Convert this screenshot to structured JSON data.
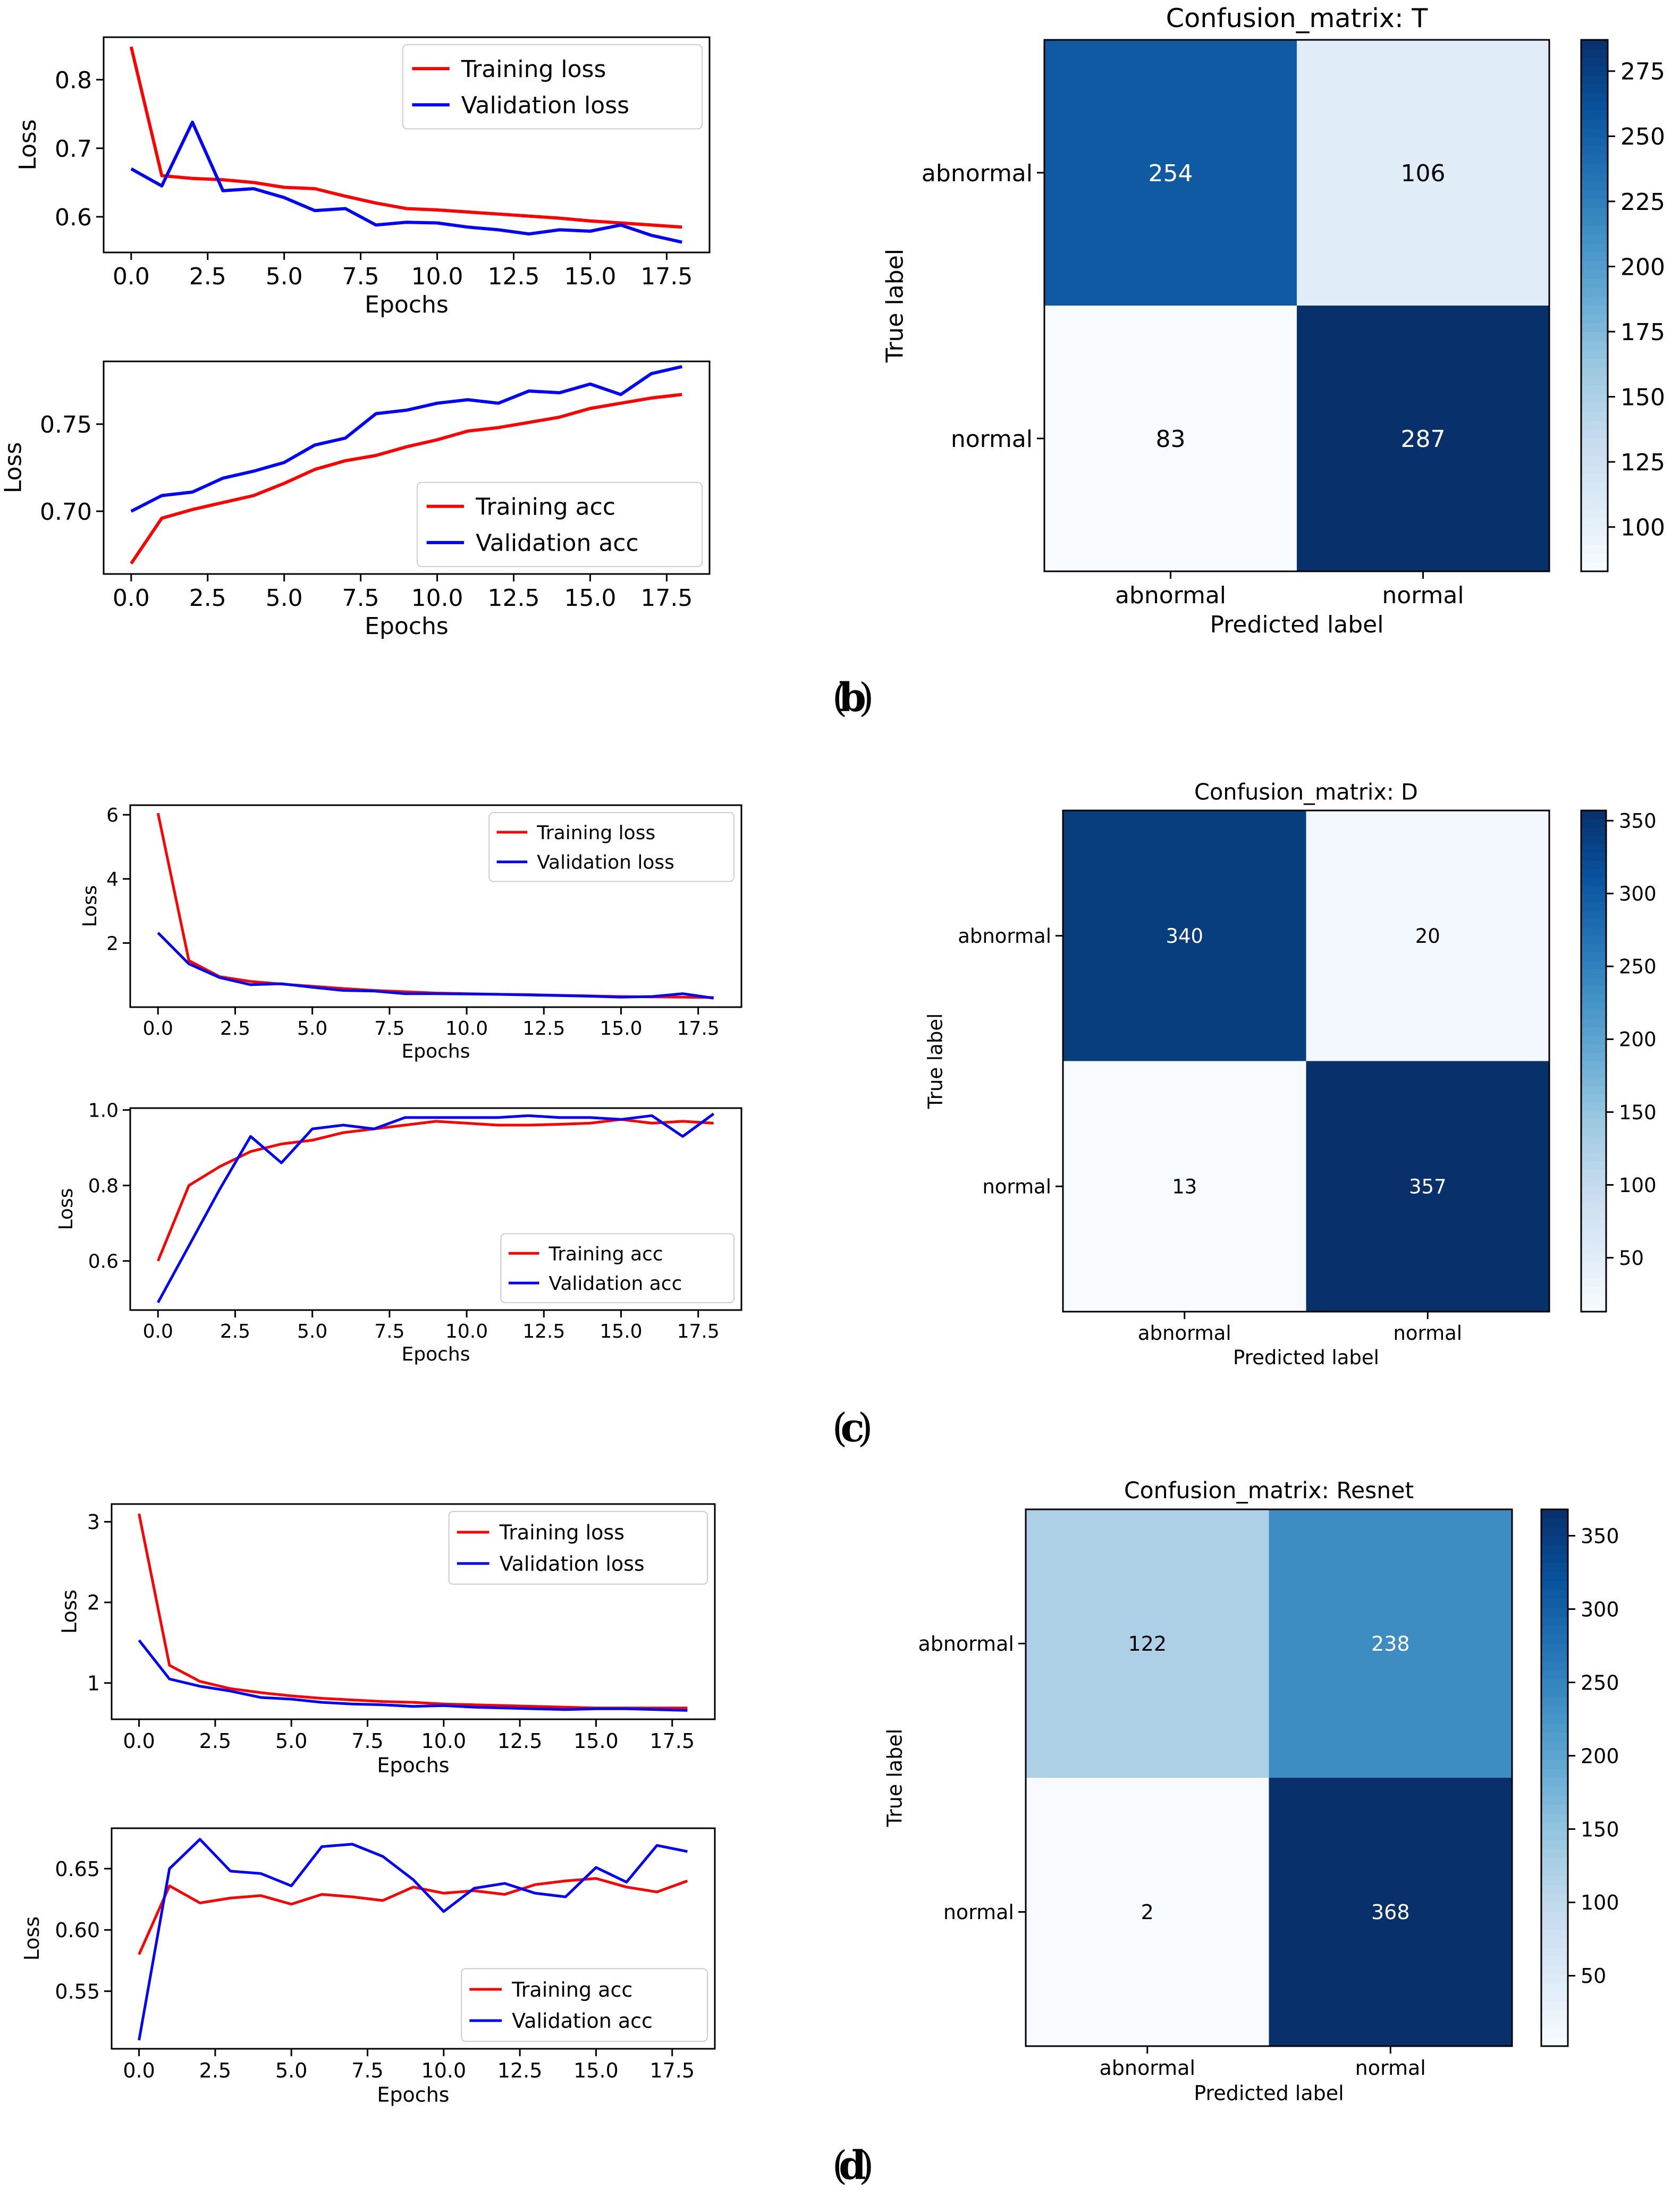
{
  "chart_data": [
    {
      "id": "b_loss",
      "type": "line",
      "x": [
        0,
        1,
        2,
        3,
        4,
        5,
        6,
        7,
        8,
        9,
        10,
        11,
        12,
        13,
        14,
        15,
        16,
        17,
        18
      ],
      "series": [
        {
          "name": "Training loss",
          "color": "#ff0000",
          "values": [
            0.848,
            0.66,
            0.656,
            0.654,
            0.65,
            0.643,
            0.641,
            0.63,
            0.62,
            0.612,
            0.61,
            0.607,
            0.604,
            0.601,
            0.598,
            0.594,
            0.591,
            0.588,
            0.585
          ]
        },
        {
          "name": "Validation loss",
          "color": "#0000ff",
          "values": [
            0.67,
            0.645,
            0.738,
            0.638,
            0.641,
            0.628,
            0.609,
            0.612,
            0.588,
            0.592,
            0.591,
            0.585,
            0.581,
            0.575,
            0.581,
            0.579,
            0.588,
            0.573,
            0.563
          ]
        }
      ],
      "title": "",
      "xlabel": "Epochs",
      "ylabel": "Loss",
      "xlim": [
        -0.9,
        18.9
      ],
      "ylim": [
        0.548,
        0.862
      ],
      "xticks": [
        0,
        2.5,
        5,
        7.5,
        10,
        12.5,
        15,
        17.5
      ],
      "xtick_labels": [
        "0.0",
        "2.5",
        "5.0",
        "7.5",
        "10.0",
        "12.5",
        "15.0",
        "17.5"
      ],
      "yticks": [
        0.6,
        0.7,
        0.8
      ],
      "ytick_labels": [
        "0.6",
        "0.7",
        "0.8"
      ],
      "legend": "top-right"
    },
    {
      "id": "b_acc",
      "type": "line",
      "x": [
        0,
        1,
        2,
        3,
        4,
        5,
        6,
        7,
        8,
        9,
        10,
        11,
        12,
        13,
        14,
        15,
        16,
        17,
        18
      ],
      "series": [
        {
          "name": "Training acc",
          "color": "#ff0000",
          "values": [
            0.67,
            0.696,
            0.701,
            0.705,
            0.709,
            0.716,
            0.724,
            0.729,
            0.732,
            0.737,
            0.741,
            0.746,
            0.748,
            0.751,
            0.754,
            0.759,
            0.762,
            0.765,
            0.767
          ]
        },
        {
          "name": "Validation acc",
          "color": "#0000ff",
          "values": [
            0.7,
            0.709,
            0.711,
            0.719,
            0.723,
            0.728,
            0.738,
            0.742,
            0.756,
            0.758,
            0.762,
            0.764,
            0.762,
            0.769,
            0.768,
            0.773,
            0.767,
            0.779,
            0.783
          ]
        }
      ],
      "title": "",
      "xlabel": "Epochs",
      "ylabel": "Loss",
      "xlim": [
        -0.9,
        18.9
      ],
      "ylim": [
        0.664,
        0.786
      ],
      "xticks": [
        0,
        2.5,
        5,
        7.5,
        10,
        12.5,
        15,
        17.5
      ],
      "xtick_labels": [
        "0.0",
        "2.5",
        "5.0",
        "7.5",
        "10.0",
        "12.5",
        "15.0",
        "17.5"
      ],
      "yticks": [
        0.7,
        0.75
      ],
      "ytick_labels": [
        "0.70",
        "0.75"
      ],
      "legend": "bottom-right"
    },
    {
      "id": "b_cm",
      "type": "heatmap",
      "title": "Confusion_matrix: T",
      "row_labels": [
        "abnormal",
        "normal"
      ],
      "col_labels": [
        "abnormal",
        "normal"
      ],
      "values": [
        [
          254,
          106
        ],
        [
          83,
          287
        ]
      ],
      "xlabel": "Predicted label",
      "ylabel": "True label",
      "vmin": 83,
      "vmax": 287,
      "colorbar_ticks": [
        100,
        125,
        150,
        175,
        200,
        225,
        250,
        275
      ],
      "colorbar_tick_labels": [
        "100",
        "125",
        "150",
        "175",
        "200",
        "225",
        "250",
        "275"
      ]
    },
    {
      "id": "c_loss",
      "type": "line",
      "x": [
        0,
        1,
        2,
        3,
        4,
        5,
        6,
        7,
        8,
        9,
        10,
        11,
        12,
        13,
        14,
        15,
        16,
        17,
        18
      ],
      "series": [
        {
          "name": "Training loss",
          "color": "#ff0000",
          "values": [
            6.05,
            1.45,
            0.95,
            0.8,
            0.72,
            0.65,
            0.58,
            0.52,
            0.48,
            0.44,
            0.42,
            0.4,
            0.39,
            0.37,
            0.35,
            0.33,
            0.32,
            0.31,
            0.3
          ]
        },
        {
          "name": "Validation loss",
          "color": "#0000ff",
          "values": [
            2.32,
            1.35,
            0.92,
            0.7,
            0.73,
            0.62,
            0.52,
            0.5,
            0.42,
            0.42,
            0.41,
            0.4,
            0.38,
            0.36,
            0.34,
            0.31,
            0.33,
            0.42,
            0.28
          ]
        }
      ],
      "title": "",
      "xlabel": "Epochs",
      "ylabel": "Loss",
      "xlim": [
        -0.9,
        18.9
      ],
      "ylim": [
        0.0,
        6.3
      ],
      "xticks": [
        0,
        2.5,
        5,
        7.5,
        10,
        12.5,
        15,
        17.5
      ],
      "xtick_labels": [
        "0.0",
        "2.5",
        "5.0",
        "7.5",
        "10.0",
        "12.5",
        "15.0",
        "17.5"
      ],
      "yticks": [
        2,
        4,
        6
      ],
      "ytick_labels": [
        "2",
        "4",
        "6"
      ],
      "legend": "top-right"
    },
    {
      "id": "c_acc",
      "type": "line",
      "x": [
        0,
        1,
        2,
        3,
        4,
        5,
        6,
        7,
        8,
        9,
        10,
        11,
        12,
        13,
        14,
        15,
        16,
        17,
        18
      ],
      "series": [
        {
          "name": "Training acc",
          "color": "#ff0000",
          "values": [
            0.6,
            0.8,
            0.85,
            0.89,
            0.91,
            0.92,
            0.94,
            0.95,
            0.96,
            0.97,
            0.965,
            0.96,
            0.96,
            0.962,
            0.965,
            0.975,
            0.965,
            0.97,
            0.965
          ]
        },
        {
          "name": "Validation acc",
          "color": "#0000ff",
          "values": [
            0.49,
            0.64,
            0.79,
            0.93,
            0.86,
            0.95,
            0.96,
            0.95,
            0.98,
            0.98,
            0.98,
            0.98,
            0.985,
            0.98,
            0.98,
            0.975,
            0.985,
            0.93,
            0.99
          ]
        }
      ],
      "title": "",
      "xlabel": "Epochs",
      "ylabel": "Loss",
      "xlim": [
        -0.9,
        18.9
      ],
      "ylim": [
        0.47,
        1.005
      ],
      "xticks": [
        0,
        2.5,
        5,
        7.5,
        10,
        12.5,
        15,
        17.5
      ],
      "xtick_labels": [
        "0.0",
        "2.5",
        "5.0",
        "7.5",
        "10.0",
        "12.5",
        "15.0",
        "17.5"
      ],
      "yticks": [
        0.6,
        0.8,
        1.0
      ],
      "ytick_labels": [
        "0.6",
        "0.8",
        "1.0"
      ],
      "legend": "bottom-right"
    },
    {
      "id": "c_cm",
      "type": "heatmap",
      "title": "Confusion_matrix: D",
      "row_labels": [
        "abnormal",
        "normal"
      ],
      "col_labels": [
        "abnormal",
        "normal"
      ],
      "values": [
        [
          340,
          20
        ],
        [
          13,
          357
        ]
      ],
      "xlabel": "Predicted label",
      "ylabel": "True label",
      "vmin": 13,
      "vmax": 357,
      "colorbar_ticks": [
        50,
        100,
        150,
        200,
        250,
        300,
        350
      ],
      "colorbar_tick_labels": [
        "50",
        "100",
        "150",
        "200",
        "250",
        "300",
        "350"
      ]
    },
    {
      "id": "d_loss",
      "type": "line",
      "x": [
        0,
        1,
        2,
        3,
        4,
        5,
        6,
        7,
        8,
        9,
        10,
        11,
        12,
        13,
        14,
        15,
        16,
        17,
        18
      ],
      "series": [
        {
          "name": "Training loss",
          "color": "#ff0000",
          "values": [
            3.1,
            1.22,
            1.02,
            0.93,
            0.88,
            0.84,
            0.81,
            0.79,
            0.77,
            0.76,
            0.74,
            0.73,
            0.72,
            0.71,
            0.7,
            0.69,
            0.69,
            0.69,
            0.69
          ]
        },
        {
          "name": "Validation loss",
          "color": "#0000ff",
          "values": [
            1.53,
            1.05,
            0.96,
            0.9,
            0.82,
            0.8,
            0.76,
            0.74,
            0.73,
            0.71,
            0.72,
            0.7,
            0.69,
            0.68,
            0.67,
            0.68,
            0.68,
            0.67,
            0.66
          ]
        }
      ],
      "title": "",
      "xlabel": "Epochs",
      "ylabel": "Loss",
      "xlim": [
        -0.9,
        18.9
      ],
      "ylim": [
        0.55,
        3.22
      ],
      "xticks": [
        0,
        2.5,
        5,
        7.5,
        10,
        12.5,
        15,
        17.5
      ],
      "xtick_labels": [
        "0.0",
        "2.5",
        "5.0",
        "7.5",
        "10.0",
        "12.5",
        "15.0",
        "17.5"
      ],
      "yticks": [
        1,
        2,
        3
      ],
      "ytick_labels": [
        "1",
        "2",
        "3"
      ],
      "legend": "top-right"
    },
    {
      "id": "d_acc",
      "type": "line",
      "x": [
        0,
        1,
        2,
        3,
        4,
        5,
        6,
        7,
        8,
        9,
        10,
        11,
        12,
        13,
        14,
        15,
        16,
        17,
        18
      ],
      "series": [
        {
          "name": "Training acc",
          "color": "#ff0000",
          "values": [
            0.58,
            0.636,
            0.622,
            0.626,
            0.628,
            0.621,
            0.629,
            0.627,
            0.624,
            0.635,
            0.63,
            0.632,
            0.629,
            0.637,
            0.64,
            0.642,
            0.635,
            0.631,
            0.64
          ]
        },
        {
          "name": "Validation acc",
          "color": "#0000ff",
          "values": [
            0.51,
            0.65,
            0.674,
            0.648,
            0.646,
            0.636,
            0.668,
            0.67,
            0.66,
            0.641,
            0.615,
            0.634,
            0.638,
            0.63,
            0.627,
            0.651,
            0.639,
            0.669,
            0.664
          ]
        }
      ],
      "title": "",
      "xlabel": "Epochs",
      "ylabel": "Loss",
      "xlim": [
        -0.9,
        18.9
      ],
      "ylim": [
        0.503,
        0.683
      ],
      "xticks": [
        0,
        2.5,
        5,
        7.5,
        10,
        12.5,
        15,
        17.5
      ],
      "xtick_labels": [
        "0.0",
        "2.5",
        "5.0",
        "7.5",
        "10.0",
        "12.5",
        "15.0",
        "17.5"
      ],
      "yticks": [
        0.55,
        0.6,
        0.65
      ],
      "ytick_labels": [
        "0.55",
        "0.60",
        "0.65"
      ],
      "legend": "bottom-right"
    },
    {
      "id": "d_cm",
      "type": "heatmap",
      "title": "Confusion_matrix: Resnet",
      "row_labels": [
        "abnormal",
        "normal"
      ],
      "col_labels": [
        "abnormal",
        "normal"
      ],
      "values": [
        [
          122,
          238
        ],
        [
          2,
          368
        ]
      ],
      "xlabel": "Predicted label",
      "ylabel": "True label",
      "vmin": 2,
      "vmax": 368,
      "colorbar_ticks": [
        50,
        100,
        150,
        200,
        250,
        300,
        350
      ],
      "colorbar_tick_labels": [
        "50",
        "100",
        "150",
        "200",
        "250",
        "300",
        "350"
      ]
    }
  ],
  "captions": {
    "b": "b",
    "c": "c",
    "d": "d"
  }
}
